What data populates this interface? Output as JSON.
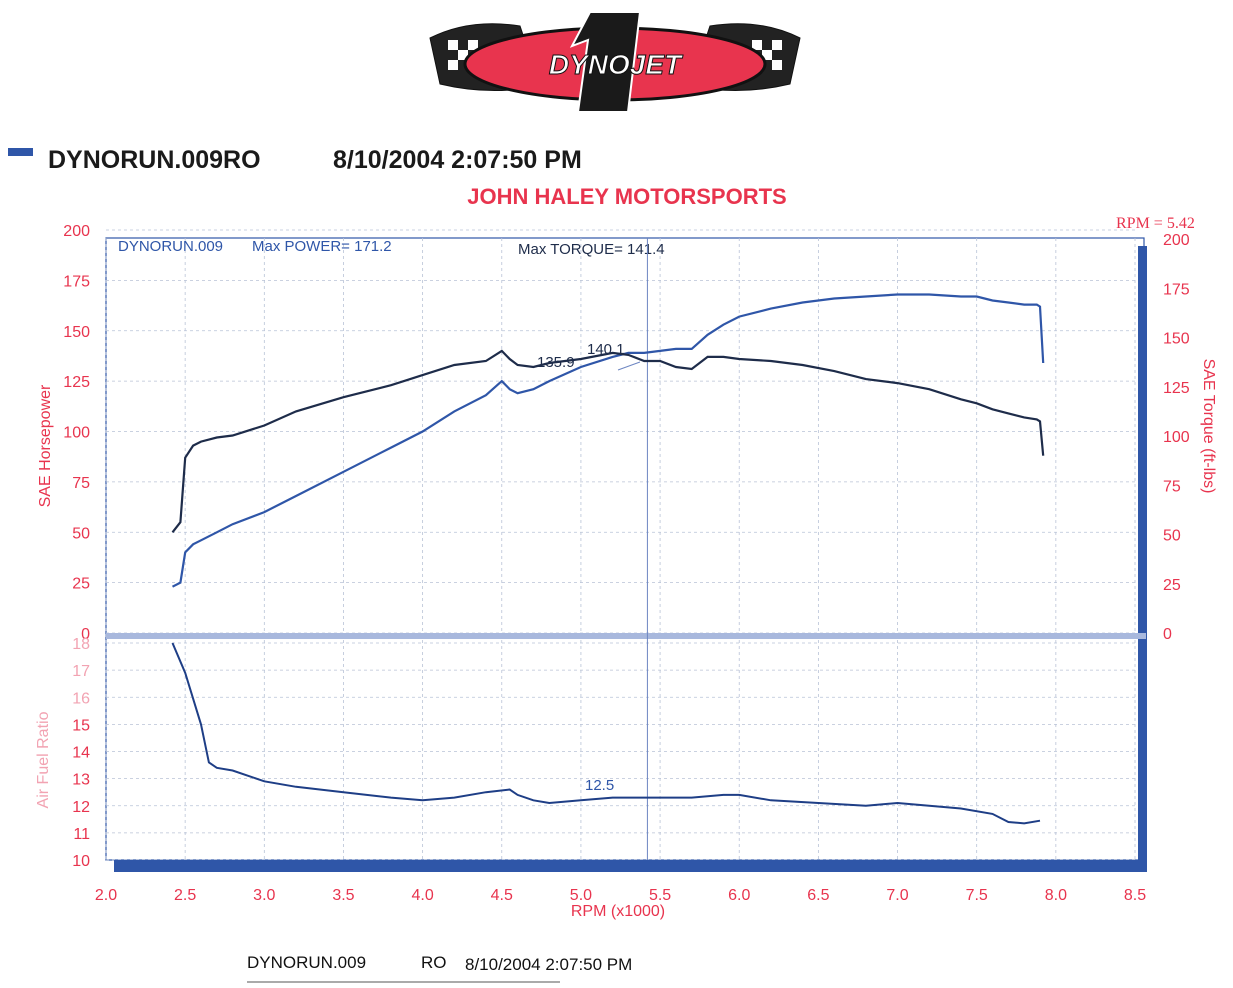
{
  "logo_text": "DYNOJET",
  "header": {
    "run_id": "DYNORUN.009RO",
    "datetime": "8/10/2004 2:07:50 PM",
    "shop": "JOHN HALEY MOTORSPORTS"
  },
  "cursor_readout": "RPM = 5.42",
  "box_labels": {
    "run": "DYNORUN.009",
    "max_power": "Max POWER= 171.2",
    "max_torque": "Max TORQUE= 141.4"
  },
  "colors": {
    "red": "#e8344e",
    "blue": "#2f56a8",
    "navy": "#1e2c4a",
    "grid": "#b8c2d6",
    "pink": "#f2a3b2"
  },
  "chart_data": {
    "type": "line",
    "xlabel": "RPM (x1000)",
    "x_ticks": [
      "2.0",
      "2.5",
      "3.0",
      "3.5",
      "4.0",
      "4.5",
      "5.0",
      "5.5",
      "6.0",
      "6.5",
      "7.0",
      "7.5",
      "8.0",
      "8.5"
    ],
    "xlim": [
      2.0,
      8.5
    ],
    "cursor_x": 5.42,
    "upper": {
      "ylabel_left": "SAE Horsepower",
      "ylabel_right": "SAE Torque (ft-lbs)",
      "ylim": [
        0,
        200
      ],
      "y_ticks": [
        "0",
        "25",
        "50",
        "75",
        "100",
        "125",
        "150",
        "175",
        "200"
      ],
      "series": [
        {
          "role": "power",
          "x": [
            2.42,
            2.47,
            2.5,
            2.55,
            2.6,
            2.7,
            2.8,
            3.0,
            3.2,
            3.5,
            3.8,
            4.0,
            4.2,
            4.4,
            4.5,
            4.55,
            4.6,
            4.7,
            4.8,
            5.0,
            5.2,
            5.3,
            5.4,
            5.5,
            5.6,
            5.7,
            5.8,
            5.9,
            6.0,
            6.2,
            6.4,
            6.6,
            6.8,
            7.0,
            7.2,
            7.4,
            7.5,
            7.6,
            7.7,
            7.8,
            7.88,
            7.9,
            7.92
          ],
          "y": [
            23,
            25,
            40,
            44,
            46,
            50,
            54,
            60,
            68,
            80,
            92,
            100,
            110,
            118,
            125,
            121,
            119,
            121,
            125,
            132,
            137,
            139,
            139,
            140,
            141,
            141,
            148,
            153,
            157,
            161,
            164,
            166,
            167,
            168,
            168,
            167,
            167,
            165,
            164,
            163,
            163,
            162,
            134
          ]
        },
        {
          "role": "torque",
          "x": [
            2.42,
            2.47,
            2.5,
            2.55,
            2.6,
            2.7,
            2.8,
            3.0,
            3.2,
            3.5,
            3.8,
            4.0,
            4.2,
            4.4,
            4.5,
            4.55,
            4.6,
            4.7,
            4.8,
            5.0,
            5.2,
            5.3,
            5.4,
            5.5,
            5.6,
            5.7,
            5.8,
            5.9,
            6.0,
            6.2,
            6.4,
            6.6,
            6.8,
            7.0,
            7.2,
            7.4,
            7.5,
            7.6,
            7.7,
            7.8,
            7.88,
            7.9,
            7.92
          ],
          "y": [
            50,
            55,
            87,
            93,
            95,
            97,
            98,
            103,
            110,
            117,
            123,
            128,
            133,
            135,
            140,
            136,
            133,
            132,
            134,
            136,
            139,
            138,
            135,
            135,
            132,
            131,
            137,
            137,
            136,
            135,
            133,
            130,
            126,
            124,
            121,
            116,
            114,
            111,
            109,
            107,
            106,
            105,
            88
          ]
        }
      ],
      "annotations": [
        "135.9",
        "140.1"
      ]
    },
    "lower": {
      "ylabel": "Air Fuel Ratio",
      "ylim": [
        10,
        18
      ],
      "y_ticks": [
        "10",
        "11",
        "12",
        "13",
        "14",
        "15",
        "16",
        "17",
        "18"
      ],
      "series": [
        {
          "role": "afr",
          "x": [
            2.42,
            2.5,
            2.6,
            2.65,
            2.7,
            2.8,
            2.9,
            3.0,
            3.2,
            3.5,
            3.8,
            4.0,
            4.2,
            4.4,
            4.55,
            4.6,
            4.7,
            4.8,
            5.0,
            5.2,
            5.5,
            5.7,
            5.9,
            6.0,
            6.2,
            6.5,
            6.8,
            7.0,
            7.2,
            7.4,
            7.6,
            7.7,
            7.8,
            7.9
          ],
          "y": [
            18,
            16.9,
            15,
            13.6,
            13.4,
            13.3,
            13.1,
            12.9,
            12.7,
            12.5,
            12.3,
            12.2,
            12.3,
            12.5,
            12.6,
            12.4,
            12.2,
            12.1,
            12.2,
            12.3,
            12.3,
            12.3,
            12.4,
            12.4,
            12.2,
            12.1,
            12.0,
            12.1,
            12.0,
            11.9,
            11.7,
            11.4,
            11.35,
            11.45
          ]
        }
      ],
      "annotations": [
        "12.5"
      ]
    }
  },
  "footer": {
    "run": "DYNORUN.009",
    "code": "RO",
    "datetime": "8/10/2004 2:07:50 PM"
  }
}
